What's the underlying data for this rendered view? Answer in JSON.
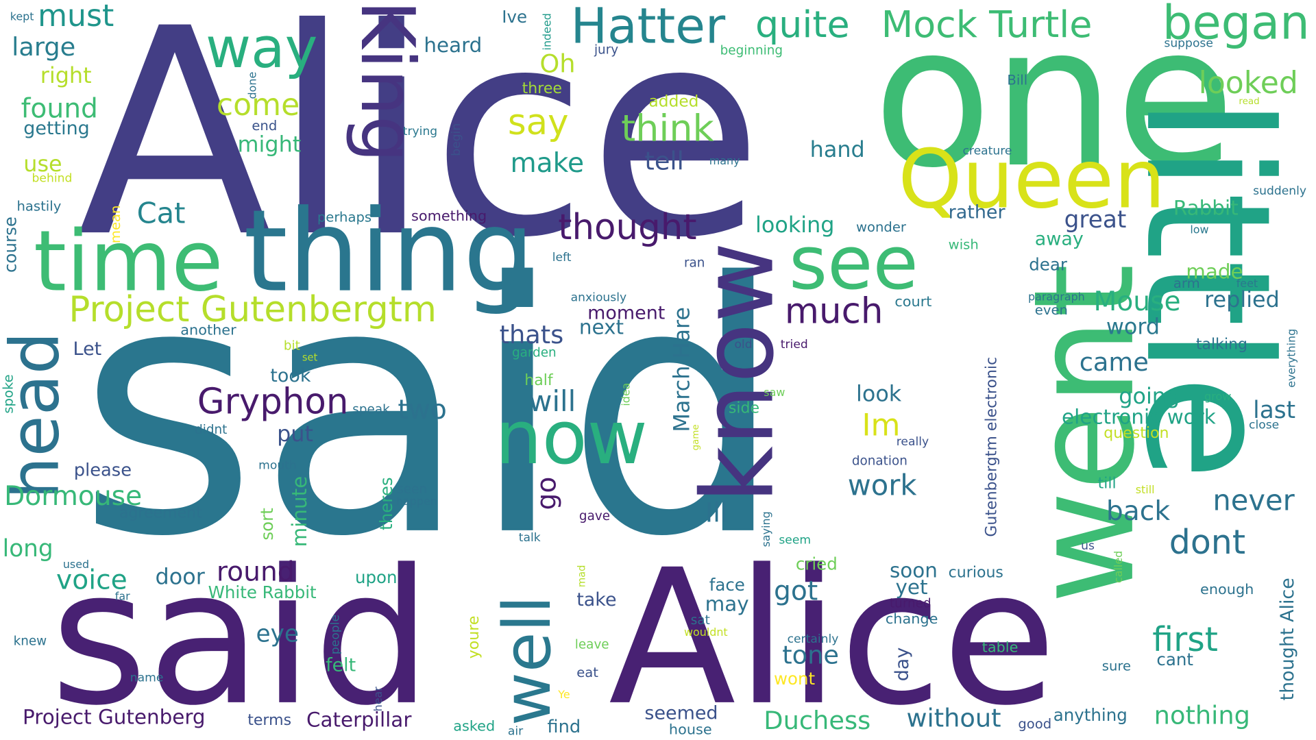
{
  "words": [
    {
      "text": "Alice",
      "color": "#433e85"
    },
    {
      "text": "said",
      "color": "#2a768e"
    },
    {
      "text": "one",
      "color": "#3dbc74"
    },
    {
      "text": "little",
      "color": "#20a386"
    },
    {
      "text": "went",
      "color": "#3dbc74"
    },
    {
      "text": "said",
      "color": "#482173"
    },
    {
      "text": "Alice",
      "color": "#482173"
    },
    {
      "text": "thing",
      "color": "#2a768e"
    },
    {
      "text": "time",
      "color": "#3dbc74"
    },
    {
      "text": "know",
      "color": "#463480"
    },
    {
      "text": "Queen",
      "color": "#d8e219"
    },
    {
      "text": "King",
      "color": "#463480"
    },
    {
      "text": "see",
      "color": "#3dbc74"
    },
    {
      "text": "now",
      "color": "#29af7f"
    },
    {
      "text": "head",
      "color": "#2c728e"
    },
    {
      "text": "well",
      "color": "#2a788e"
    },
    {
      "text": "way",
      "color": "#29af7f"
    },
    {
      "text": "Hatter",
      "color": "#25858e"
    },
    {
      "text": "began",
      "color": "#3dbc74"
    },
    {
      "text": "Mock Turtle",
      "color": "#3dbc74"
    },
    {
      "text": "quite",
      "color": "#29af7f"
    },
    {
      "text": "Project Gutenbergtm",
      "color": "#b5de2b"
    },
    {
      "text": "thought",
      "color": "#481a6c"
    },
    {
      "text": "much",
      "color": "#481a6c"
    },
    {
      "text": "Gryphon",
      "color": "#481a6c"
    },
    {
      "text": "think",
      "color": "#6ece58"
    },
    {
      "text": "say",
      "color": "#d0e11c"
    },
    {
      "text": "come",
      "color": "#b5de2b"
    },
    {
      "text": "must",
      "color": "#1f958b"
    },
    {
      "text": "looked",
      "color": "#6ece58"
    },
    {
      "text": "large",
      "color": "#287d8e"
    },
    {
      "text": "right",
      "color": "#b5de2b"
    },
    {
      "text": "found",
      "color": "#3dbc74"
    },
    {
      "text": "getting",
      "color": "#2a788e"
    },
    {
      "text": "might",
      "color": "#37b878"
    },
    {
      "text": "end",
      "color": "#3a538b"
    },
    {
      "text": "use",
      "color": "#b5de2b"
    },
    {
      "text": "behind",
      "color": "#c2df23"
    },
    {
      "text": "hastily",
      "color": "#2c728e"
    },
    {
      "text": "course",
      "color": "#2c728e"
    },
    {
      "text": "mean",
      "color": "#fde725"
    },
    {
      "text": "Cat",
      "color": "#25858e"
    },
    {
      "text": "perhaps",
      "color": "#2a788e"
    },
    {
      "text": "something",
      "color": "#481a6c"
    },
    {
      "text": "tell",
      "color": "#3b528b"
    },
    {
      "text": "make",
      "color": "#1f9a8a"
    },
    {
      "text": "hand",
      "color": "#287d8e"
    },
    {
      "text": "creature",
      "color": "#2c728e"
    },
    {
      "text": "many",
      "color": "#2c728e"
    },
    {
      "text": "suddenly",
      "color": "#2c728e"
    },
    {
      "text": "Rabbit",
      "color": "#37b878"
    },
    {
      "text": "Oh",
      "color": "#b5de2b"
    },
    {
      "text": "three",
      "color": "#a2da37"
    },
    {
      "text": "added",
      "color": "#b5de2b"
    },
    {
      "text": "trying",
      "color": "#2a788e"
    },
    {
      "text": "begin",
      "color": "#3b528b"
    },
    {
      "text": "heard",
      "color": "#2c728e"
    },
    {
      "text": "Ive",
      "color": "#2c728e"
    },
    {
      "text": "indeed",
      "color": "#1f9a8a"
    },
    {
      "text": "jury",
      "color": "#3b528b"
    },
    {
      "text": "beginning",
      "color": "#3dbc74"
    },
    {
      "text": "kept",
      "color": "#2c728e"
    },
    {
      "text": "done",
      "color": "#2c728e"
    },
    {
      "text": "Bill",
      "color": "#2c728e"
    },
    {
      "text": "read",
      "color": "#b5de2b"
    },
    {
      "text": "suppose",
      "color": "#2c728e"
    },
    {
      "text": "great",
      "color": "#3b528b"
    },
    {
      "text": "rather",
      "color": "#31688e"
    },
    {
      "text": "looking",
      "color": "#20a386"
    },
    {
      "text": "wonder",
      "color": "#2c728e"
    },
    {
      "text": "low",
      "color": "#2a788e"
    },
    {
      "text": "away",
      "color": "#29af7f"
    },
    {
      "text": "wish",
      "color": "#37b878"
    },
    {
      "text": "dear",
      "color": "#2c728e"
    },
    {
      "text": "made",
      "color": "#6ece58"
    },
    {
      "text": "feet",
      "color": "#2a788e"
    },
    {
      "text": "arm",
      "color": "#2c728e"
    },
    {
      "text": "Mouse",
      "color": "#29af7f"
    },
    {
      "text": "replied",
      "color": "#2c728e"
    },
    {
      "text": "paragraph",
      "color": "#2c728e"
    },
    {
      "text": "even",
      "color": "#2c728e"
    },
    {
      "text": "word",
      "color": "#2a788e"
    },
    {
      "text": "court",
      "color": "#2a788e"
    },
    {
      "text": "left",
      "color": "#2c728e"
    },
    {
      "text": "ran",
      "color": "#3b528b"
    },
    {
      "text": "anxiously",
      "color": "#2c728e"
    },
    {
      "text": "moment",
      "color": "#481a6c"
    },
    {
      "text": "next",
      "color": "#2c728e"
    },
    {
      "text": "thats",
      "color": "#3b528b"
    },
    {
      "text": "March Hare",
      "color": "#2c728e"
    },
    {
      "text": "dont",
      "color": "#2c728e"
    },
    {
      "text": "came",
      "color": "#2c728e"
    },
    {
      "text": "talking",
      "color": "#2c728e"
    },
    {
      "text": "everything",
      "color": "#2c728e"
    },
    {
      "text": "another",
      "color": "#2c728e"
    },
    {
      "text": "Let",
      "color": "#3b528b"
    },
    {
      "text": "bit",
      "color": "#b5de2b"
    },
    {
      "text": "set",
      "color": "#b5de2b"
    },
    {
      "text": "garden",
      "color": "#29af7f"
    },
    {
      "text": "old",
      "color": "#3b528b"
    },
    {
      "text": "tried",
      "color": "#481a6c"
    },
    {
      "text": "took",
      "color": "#2c728e"
    },
    {
      "text": "half",
      "color": "#6ece58"
    },
    {
      "text": "idea",
      "color": "#6ece58"
    },
    {
      "text": "saw",
      "color": "#6ece58"
    },
    {
      "text": "look",
      "color": "#2c728e"
    },
    {
      "text": "Gutenbergtm electronic",
      "color": "#3b528b"
    },
    {
      "text": "going",
      "color": "#20a386"
    },
    {
      "text": "grow",
      "color": "#29af7f"
    },
    {
      "text": "last",
      "color": "#2c728e"
    },
    {
      "text": "close",
      "color": "#2c728e"
    },
    {
      "text": "electronic work",
      "color": "#20a386"
    },
    {
      "text": "question",
      "color": "#c2df23"
    },
    {
      "text": "Im",
      "color": "#d8e219"
    },
    {
      "text": "really",
      "color": "#3b528b"
    },
    {
      "text": "will",
      "color": "#2c728e"
    },
    {
      "text": "two",
      "color": "#2c728e"
    },
    {
      "text": "side",
      "color": "#37b878"
    },
    {
      "text": "speak",
      "color": "#2c728e"
    },
    {
      "text": "game",
      "color": "#c2df23"
    },
    {
      "text": "spoke",
      "color": "#20a386"
    },
    {
      "text": "didnt",
      "color": "#2c728e"
    },
    {
      "text": "put",
      "color": "#3b528b"
    },
    {
      "text": "donation",
      "color": "#3b528b"
    },
    {
      "text": "till",
      "color": "#20a386"
    },
    {
      "text": "still",
      "color": "#c2df23"
    },
    {
      "text": "work",
      "color": "#2c728e"
    },
    {
      "text": "please",
      "color": "#3b528b"
    },
    {
      "text": "Dormouse",
      "color": "#37b878"
    },
    {
      "text": "mouth",
      "color": "#2c728e"
    },
    {
      "text": "theres",
      "color": "#29af7f"
    },
    {
      "text": "minute",
      "color": "#37b878"
    },
    {
      "text": "seen",
      "color": "#2c728e"
    },
    {
      "text": "happen",
      "color": "#2c728e"
    },
    {
      "text": "go",
      "color": "#481a6c"
    },
    {
      "text": "gave",
      "color": "#481a6c"
    },
    {
      "text": "never",
      "color": "#2c728e"
    },
    {
      "text": "back",
      "color": "#2c728e"
    },
    {
      "text": "agreement",
      "color": "#2c728e"
    },
    {
      "text": "sort",
      "color": "#6ece58"
    },
    {
      "text": "Ill",
      "color": "#2c728e"
    },
    {
      "text": "saying",
      "color": "#2c728e"
    },
    {
      "text": "seem",
      "color": "#20a386"
    },
    {
      "text": "talk",
      "color": "#2c728e"
    },
    {
      "text": "long",
      "color": "#37b878"
    },
    {
      "text": "us",
      "color": "#3b528b"
    },
    {
      "text": "called",
      "color": "#6ece58"
    },
    {
      "text": "voice",
      "color": "#20a386"
    },
    {
      "text": "door",
      "color": "#2c728e"
    },
    {
      "text": "round",
      "color": "#481a6c"
    },
    {
      "text": "upon",
      "color": "#20a386"
    },
    {
      "text": "used",
      "color": "#2c728e"
    },
    {
      "text": "far",
      "color": "#2c728e"
    },
    {
      "text": "White Rabbit",
      "color": "#37b878"
    },
    {
      "text": "mad",
      "color": "#b5de2b"
    },
    {
      "text": "cried",
      "color": "#6ece58"
    },
    {
      "text": "soon",
      "color": "#2c728e"
    },
    {
      "text": "curious",
      "color": "#2c728e"
    },
    {
      "text": "face",
      "color": "#2c728e"
    },
    {
      "text": "yet",
      "color": "#2c728e"
    },
    {
      "text": "got",
      "color": "#2c728e"
    },
    {
      "text": "may",
      "color": "#2c728e"
    },
    {
      "text": "turned",
      "color": "#481a6c"
    },
    {
      "text": "enough",
      "color": "#2c728e"
    },
    {
      "text": "thought Alice",
      "color": "#2c728e"
    },
    {
      "text": "take",
      "color": "#3b528b"
    },
    {
      "text": "sat",
      "color": "#2c728e"
    },
    {
      "text": "change",
      "color": "#2c728e"
    },
    {
      "text": "first",
      "color": "#20a386"
    },
    {
      "text": "eye",
      "color": "#2c728e"
    },
    {
      "text": "wouldnt",
      "color": "#c2df23"
    },
    {
      "text": "certainly",
      "color": "#2c728e"
    },
    {
      "text": "knew",
      "color": "#2c728e"
    },
    {
      "text": "people",
      "color": "#2c728e"
    },
    {
      "text": "leave",
      "color": "#6ece58"
    },
    {
      "text": "tone",
      "color": "#2c728e"
    },
    {
      "text": "day",
      "color": "#3b528b"
    },
    {
      "text": "table",
      "color": "#37b878"
    },
    {
      "text": "cant",
      "color": "#2c728e"
    },
    {
      "text": "felt",
      "color": "#37b878"
    },
    {
      "text": "youre",
      "color": "#c2df23"
    },
    {
      "text": "eat",
      "color": "#3b528b"
    },
    {
      "text": "wont",
      "color": "#fde725"
    },
    {
      "text": "sure",
      "color": "#2c728e"
    },
    {
      "text": "name",
      "color": "#2c728e"
    },
    {
      "text": "hear",
      "color": "#3b528b"
    },
    {
      "text": "Ye",
      "color": "#fde725"
    },
    {
      "text": "Project Gutenberg",
      "color": "#481a6c"
    },
    {
      "text": "terms",
      "color": "#3b528b"
    },
    {
      "text": "Caterpillar",
      "color": "#481a6c"
    },
    {
      "text": "seemed",
      "color": "#3b528b"
    },
    {
      "text": "Duchess",
      "color": "#37b878"
    },
    {
      "text": "without",
      "color": "#2c728e"
    },
    {
      "text": "anything",
      "color": "#2c728e"
    },
    {
      "text": "nothing",
      "color": "#37b878"
    },
    {
      "text": "asked",
      "color": "#20a386"
    },
    {
      "text": "air",
      "color": "#2c728e"
    },
    {
      "text": "find",
      "color": "#2c728e"
    },
    {
      "text": "house",
      "color": "#2c728e"
    },
    {
      "text": "good",
      "color": "#3b528b"
    }
  ]
}
